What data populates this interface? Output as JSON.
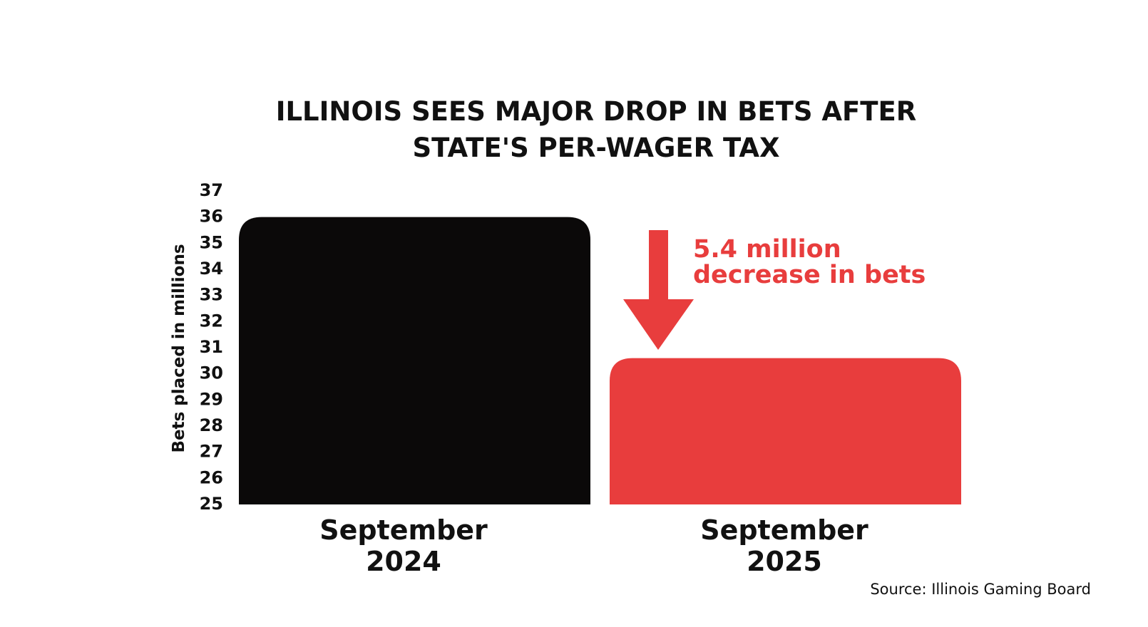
{
  "chart_data": {
    "type": "bar",
    "title_lines": [
      "ILLINOIS SEES MAJOR DROP IN BETS AFTER",
      "STATE'S PER-WAGER TAX"
    ],
    "ylabel": "Bets placed in millions",
    "ylim": [
      25,
      37
    ],
    "yticks": [
      "25",
      "26",
      "27",
      "28",
      "29",
      "30",
      "31",
      "32",
      "33",
      "34",
      "35",
      "36",
      "37"
    ],
    "categories": [
      {
        "lines": [
          "September",
          "2024"
        ]
      },
      {
        "lines": [
          "September",
          "2025"
        ]
      }
    ],
    "values": [
      36.0,
      30.6
    ],
    "bar_colors": [
      "#0b0909",
      "#e83d3d"
    ],
    "grid": false,
    "annotation": {
      "lines": [
        "5.4 million",
        "decrease in bets"
      ],
      "color": "#e83d3d",
      "icon": "down-arrow-icon"
    },
    "source": "Source: Illinois Gaming Board"
  }
}
